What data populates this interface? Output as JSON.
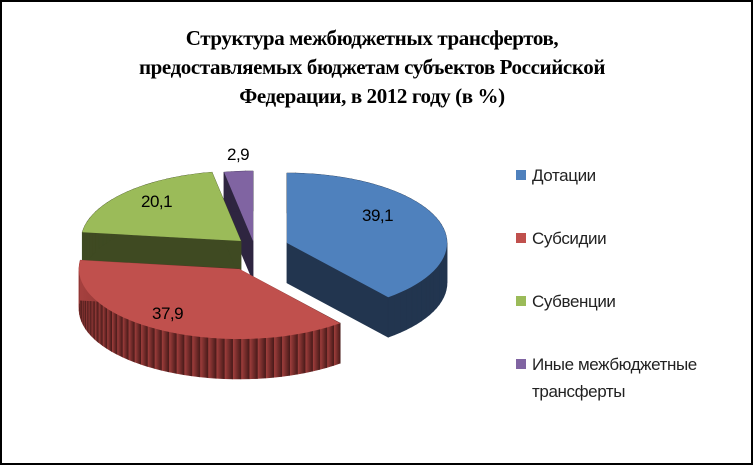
{
  "chart_data": {
    "type": "pie",
    "style": "3d-exploded",
    "title": "Структура межбюджетных трансфертов, предоставляемых бюджетам субъектов Российской Федерации, в 2012 году (в %)",
    "title_lines": [
      "Структура межбюджетных трансфертов,",
      "предоставляемых бюджетам субъектов Российской",
      "Федерации, в 2012 году (в %)"
    ],
    "categories": [
      "Дотации",
      "Субсидии",
      "Субвенции",
      "Иные межбюджетные трансферты"
    ],
    "values": [
      39.1,
      37.9,
      20.1,
      2.9
    ],
    "data_labels": [
      "39,1",
      "37,9",
      "20,1",
      "2,9"
    ],
    "colors": [
      "#4F81BD",
      "#C0504D",
      "#9BBB59",
      "#8064A2"
    ],
    "side_colors": [
      "#22354F",
      "#6B2523",
      "#3F4A22",
      "#2E2540"
    ],
    "legend_position": "right"
  }
}
